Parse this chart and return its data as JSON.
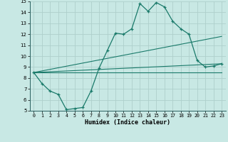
{
  "xlabel": "Humidex (Indice chaleur)",
  "xlim": [
    -0.5,
    23.5
  ],
  "ylim": [
    5,
    15
  ],
  "xticks": [
    0,
    1,
    2,
    3,
    4,
    5,
    6,
    7,
    8,
    9,
    10,
    11,
    12,
    13,
    14,
    15,
    16,
    17,
    18,
    19,
    20,
    21,
    22,
    23
  ],
  "yticks": [
    5,
    6,
    7,
    8,
    9,
    10,
    11,
    12,
    13,
    14,
    15
  ],
  "bg_color": "#c8e8e4",
  "grid_color": "#aed0cc",
  "line_color": "#1a7a6a",
  "main_series": {
    "x": [
      0,
      1,
      2,
      3,
      4,
      5,
      6,
      7,
      8,
      9,
      10,
      11,
      12,
      13,
      14,
      15,
      16,
      17,
      18,
      19,
      20,
      21,
      22,
      23
    ],
    "y": [
      8.5,
      7.5,
      6.8,
      6.5,
      5.1,
      5.2,
      5.3,
      6.8,
      8.9,
      10.5,
      12.1,
      12.0,
      12.5,
      14.8,
      14.1,
      14.9,
      14.5,
      13.2,
      12.5,
      12.0,
      9.6,
      9.0,
      9.1,
      9.3
    ]
  },
  "straight_lines": [
    {
      "x": [
        0,
        23
      ],
      "y": [
        8.5,
        9.3
      ]
    },
    {
      "x": [
        0,
        23
      ],
      "y": [
        8.5,
        11.8
      ]
    },
    {
      "x": [
        0,
        23
      ],
      "y": [
        8.5,
        8.5
      ]
    }
  ]
}
